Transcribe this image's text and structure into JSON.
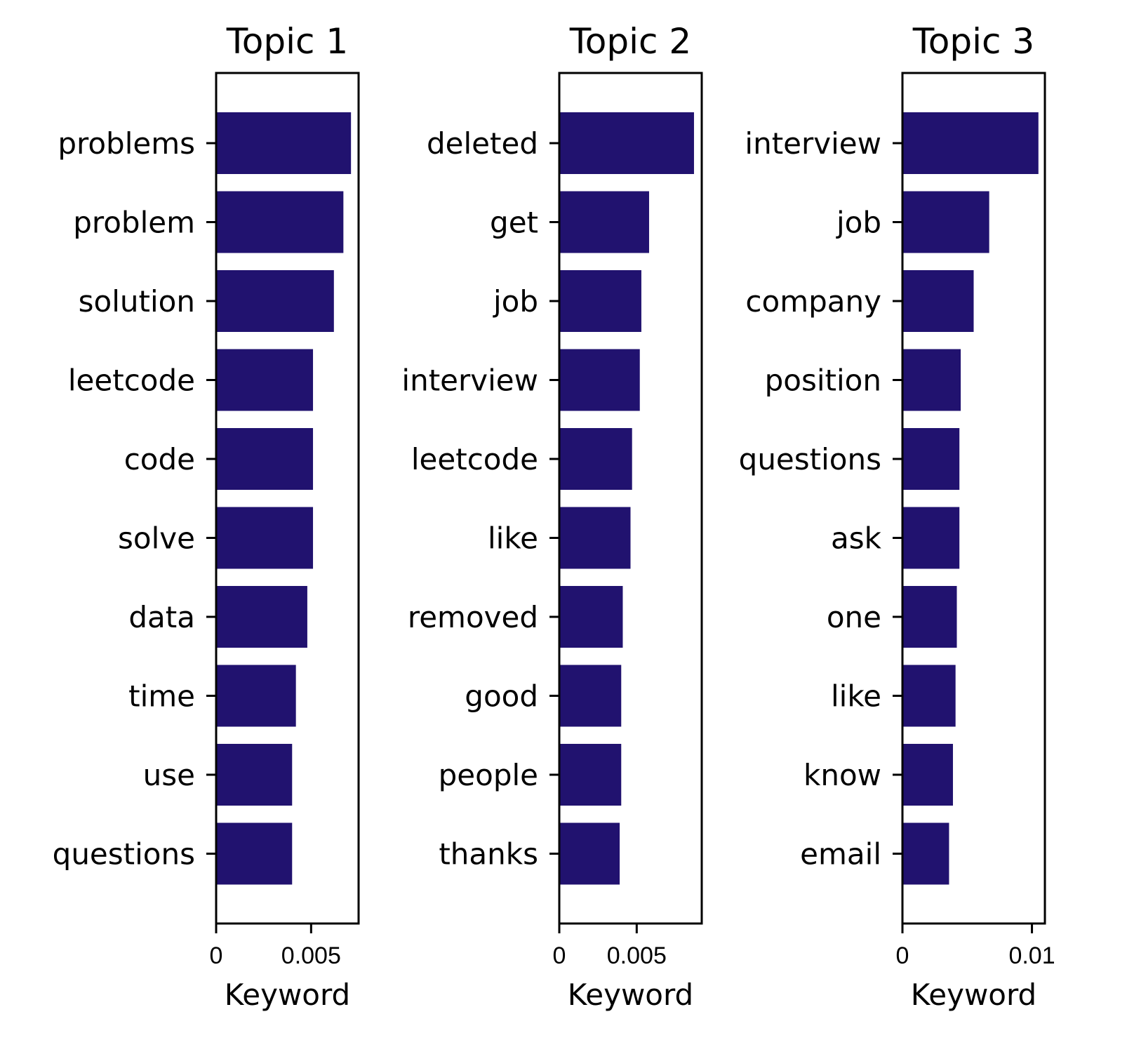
{
  "chart_data": [
    {
      "type": "bar",
      "orientation": "horizontal",
      "title": "Topic 1",
      "xlabel": "Keyword",
      "ylabel": "",
      "color": "#21126f",
      "categories": [
        "problems",
        "problem",
        "solution",
        "leetcode",
        "code",
        "solve",
        "data",
        "time",
        "use",
        "questions"
      ],
      "values": [
        0.0071,
        0.0067,
        0.0062,
        0.0051,
        0.0051,
        0.0051,
        0.0048,
        0.0042,
        0.004,
        0.004
      ],
      "xlim": [
        0,
        0.0075
      ],
      "xticks": [
        0,
        0.005
      ],
      "xtick_labels": [
        "0",
        "0.005"
      ]
    },
    {
      "type": "bar",
      "orientation": "horizontal",
      "title": "Topic 2",
      "xlabel": "Keyword",
      "ylabel": "",
      "color": "#21126f",
      "categories": [
        "deleted",
        "get",
        "job",
        "interview",
        "leetcode",
        "like",
        "removed",
        "good",
        "people",
        "thanks"
      ],
      "values": [
        0.0087,
        0.0058,
        0.0053,
        0.0052,
        0.0047,
        0.0046,
        0.0041,
        0.004,
        0.004,
        0.0039
      ],
      "xlim": [
        0,
        0.0092
      ],
      "xticks": [
        0,
        0.005
      ],
      "xtick_labels": [
        "0",
        "0.005"
      ]
    },
    {
      "type": "bar",
      "orientation": "horizontal",
      "title": "Topic 3",
      "xlabel": "Keyword",
      "ylabel": "",
      "color": "#21126f",
      "categories": [
        "interview",
        "job",
        "company",
        "position",
        "questions",
        "ask",
        "one",
        "like",
        "know",
        "email"
      ],
      "values": [
        0.0105,
        0.0067,
        0.0055,
        0.0045,
        0.0044,
        0.0044,
        0.0042,
        0.0041,
        0.0039,
        0.0036
      ],
      "xlim": [
        0,
        0.011
      ],
      "xticks": [
        0,
        0.01
      ],
      "xtick_labels": [
        "0",
        "0.01"
      ]
    }
  ]
}
